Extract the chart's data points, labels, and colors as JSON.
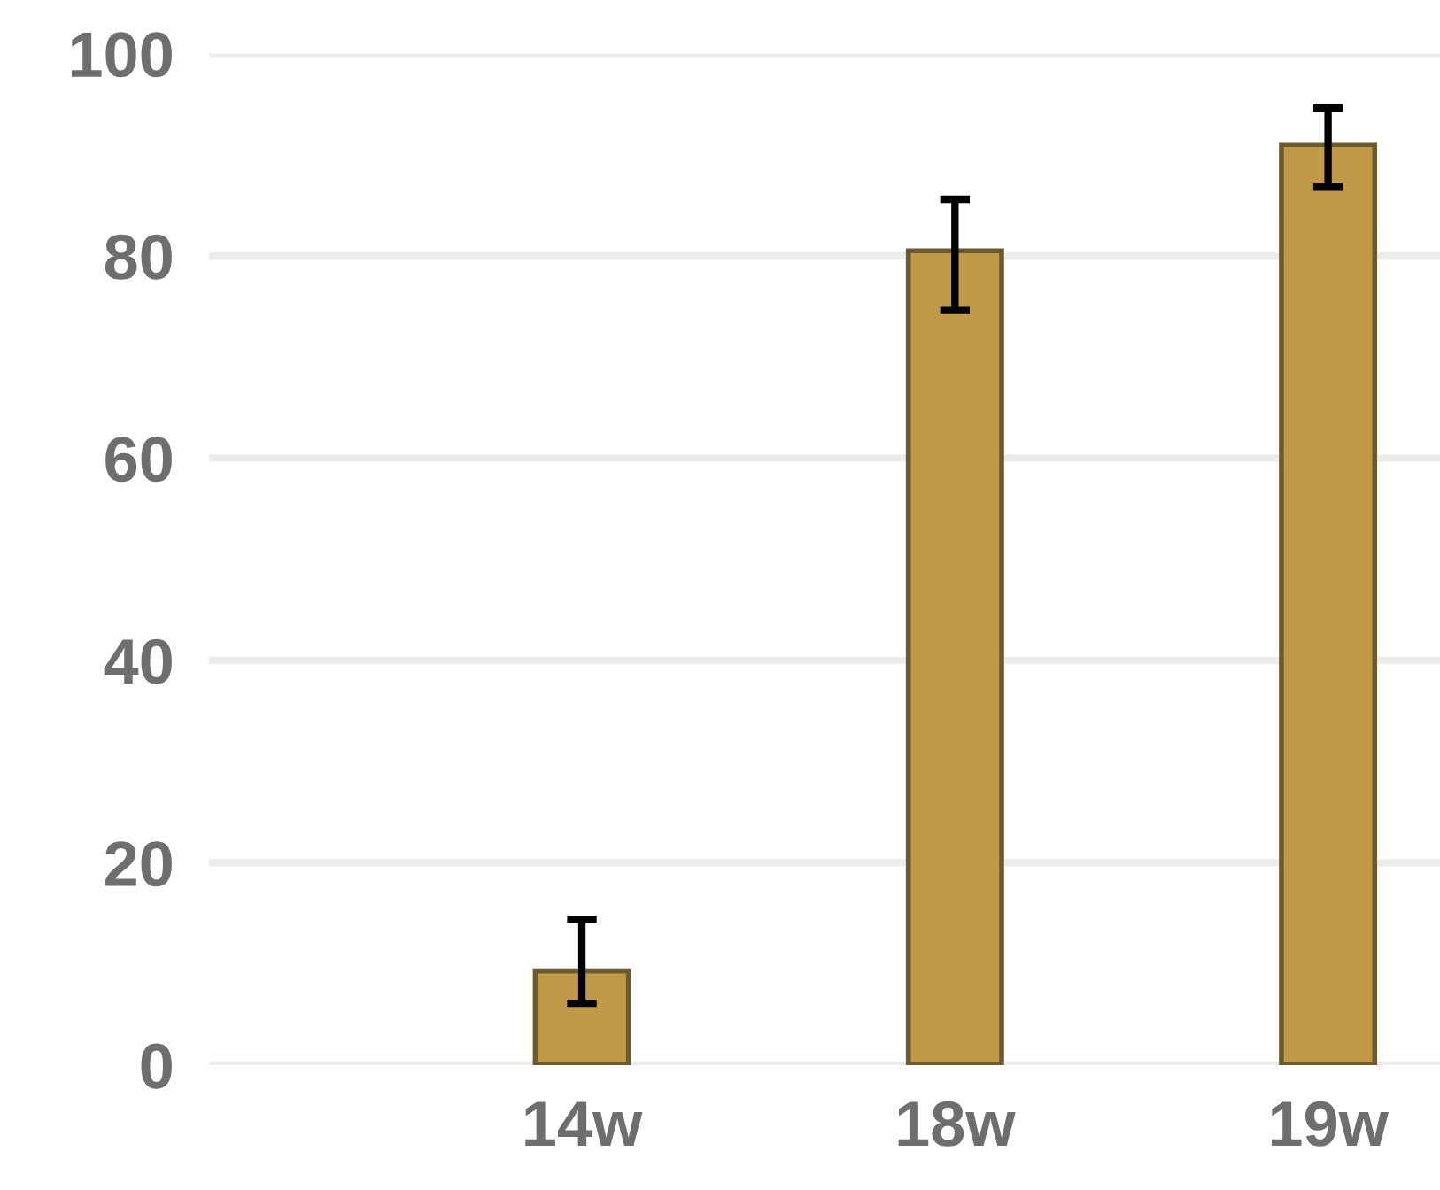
{
  "chart_data": {
    "type": "bar",
    "categories": [
      "14w",
      "18w",
      "19w"
    ],
    "values": [
      9.3,
      80.5,
      91
    ],
    "errors": [
      [
        6.1,
        14.4
      ],
      [
        74.6,
        85.6
      ],
      [
        86.8,
        94.6
      ]
    ],
    "color": "#c09a48",
    "ylim": [
      0,
      100
    ],
    "yticks": [
      0,
      20,
      40,
      60,
      80,
      100
    ],
    "grid": "y",
    "legend": false
  }
}
